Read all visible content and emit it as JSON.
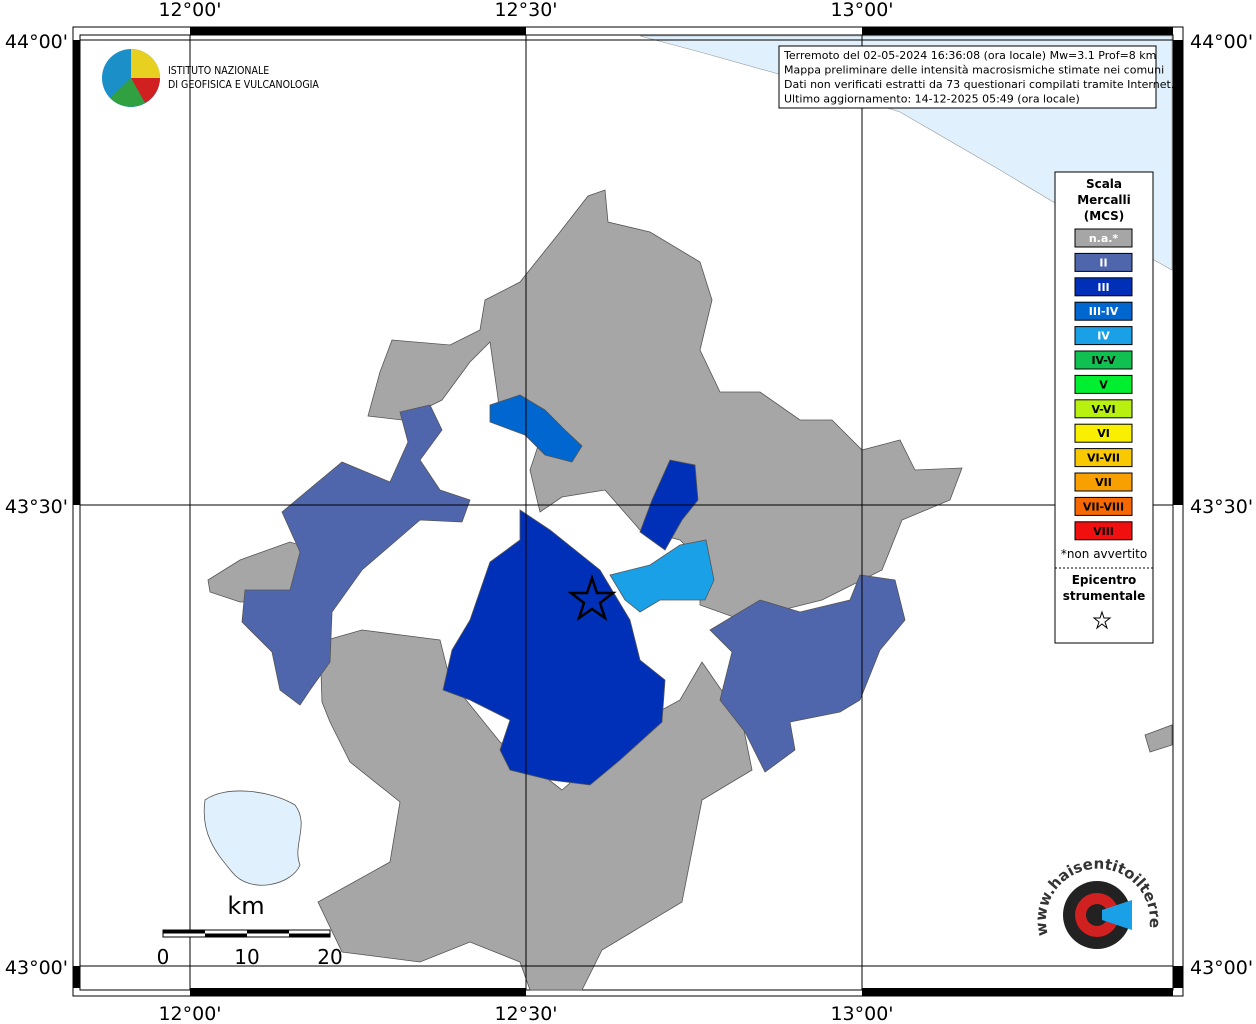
{
  "frame": {
    "top_labels": [
      "12°00'",
      "12°30'",
      "13°00'"
    ],
    "bottom_labels": [
      "12°00'",
      "12°30'",
      "13°00'"
    ],
    "left_labels": [
      "44°00'",
      "43°30'",
      "43°00'"
    ],
    "right_labels": [
      "44°00'",
      "43°30'",
      "43°00'"
    ]
  },
  "info_box": {
    "lines": [
      "Terremoto del 02-05-2024 16:36:08 (ora locale) Mw=3.1 Prof=8 km",
      "Mappa preliminare delle intensità macrosismiche stimate nei comuni",
      "Dati non verificati estratti da 73 questionari compilati tramite Internet.",
      "Ultimo aggiornamento: 14-12-2025 05:49 (ora locale)"
    ]
  },
  "logo": {
    "lines": [
      "ISTITUTO NAZIONALE",
      "DI GEOFISICA E VULCANOLOGIA"
    ]
  },
  "legend": {
    "title_lines": [
      "Scala",
      "Mercalli",
      "(MCS)"
    ],
    "items": [
      {
        "label": "n.a.*",
        "color": "#a6a6a6"
      },
      {
        "label": "II",
        "color": "#4f66ad"
      },
      {
        "label": "III",
        "color": "#0030b8"
      },
      {
        "label": "III-IV",
        "color": "#0066d0"
      },
      {
        "label": "IV",
        "color": "#1aa0e6"
      },
      {
        "label": "IV-V",
        "color": "#10c050"
      },
      {
        "label": "V",
        "color": "#00ee30"
      },
      {
        "label": "V-VI",
        "color": "#b8f010"
      },
      {
        "label": "VI",
        "color": "#f8f000"
      },
      {
        "label": "VI-VII",
        "color": "#f8c800"
      },
      {
        "label": "VII",
        "color": "#f8a000"
      },
      {
        "label": "VII-VIII",
        "color": "#f86800"
      },
      {
        "label": "VIII",
        "color": "#f01010"
      }
    ],
    "note": "*non avvertito",
    "epicenter_lines": [
      "Epicentro",
      "strumentale"
    ]
  },
  "scale_bar": {
    "unit": "km",
    "labels": [
      "0",
      "10",
      "20"
    ]
  },
  "site_logo": {
    "text": "www.haisentitoilterremoto.it"
  }
}
